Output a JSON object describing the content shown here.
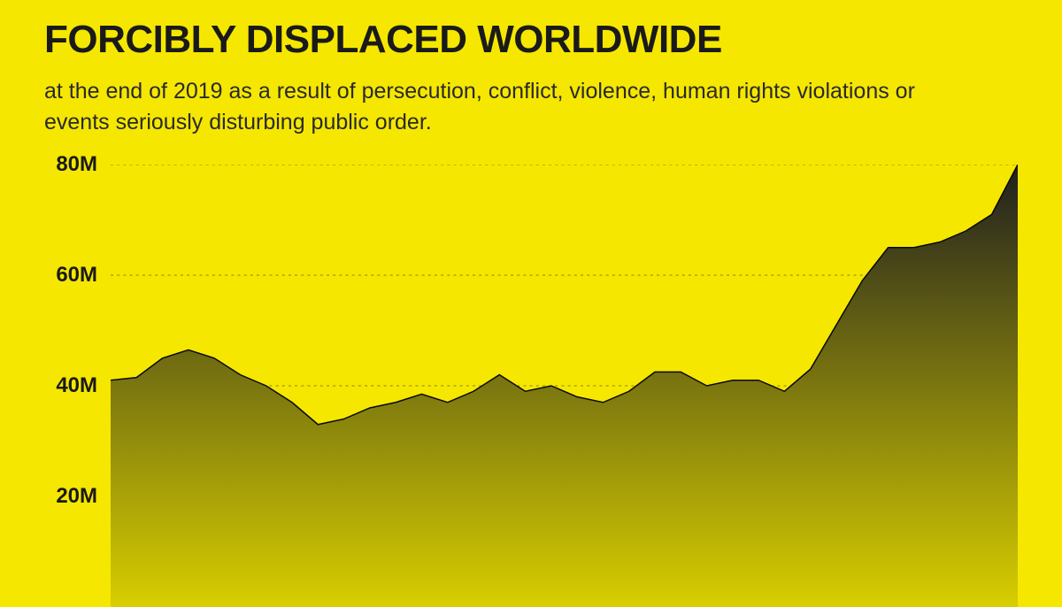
{
  "title": "FORCIBLY DISPLACED WORLDWIDE",
  "subtitle": "at the end of 2019 as a result of persecution, conflict, violence, human rights violations or events seriously disturbing public order.",
  "colors": {
    "background": "#f5e700",
    "title_text": "#1a1a1a",
    "subtitle_text": "#2a2a2a",
    "y_label_text": "#1a1a1a",
    "grid_line": "#8a8400",
    "area_top": "#1f1f1f",
    "area_bottom": "#d8ce00",
    "line_stroke": "#0a0a0a"
  },
  "typography": {
    "title_fontsize": 44,
    "subtitle_fontsize": 25,
    "y_label_fontsize": 24,
    "title_weight": 800,
    "subtitle_weight": 400,
    "y_label_weight": 700
  },
  "chart": {
    "type": "area",
    "y_min": 0,
    "y_max": 80,
    "y_ticks": [
      20,
      40,
      60,
      80
    ],
    "y_tick_labels": [
      "20M",
      "40M",
      "60M",
      "80M"
    ],
    "grid_on": true,
    "grid_dash": "3 4",
    "line_width": 1.5,
    "values": [
      41,
      41.5,
      45,
      46.5,
      45,
      42,
      40,
      37,
      33,
      34,
      36,
      37,
      38.5,
      37,
      39,
      42,
      39,
      40,
      38,
      37,
      39,
      42.5,
      42.5,
      40,
      41,
      41,
      39,
      43,
      51,
      59,
      65,
      65,
      66,
      68,
      71,
      80
    ],
    "n_points": 36
  }
}
